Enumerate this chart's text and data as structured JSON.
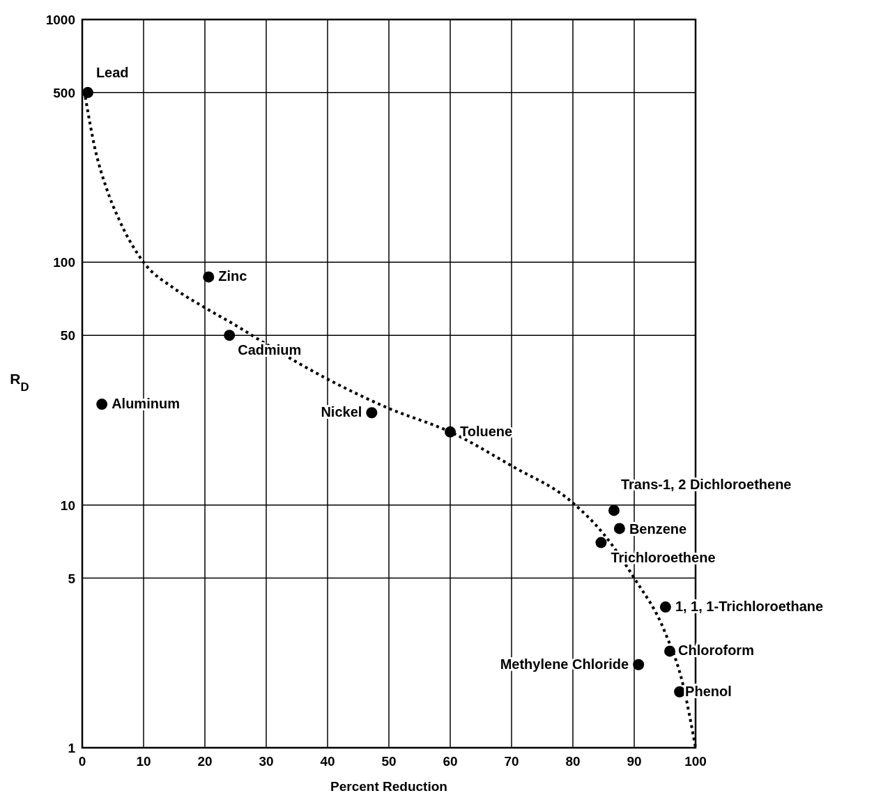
{
  "chart_data": {
    "type": "scatter",
    "xlabel": "Percent Reduction",
    "ylabel": "R$_{D}$",
    "xlim": [
      0,
      100
    ],
    "xticks": [
      0,
      10,
      20,
      30,
      40,
      50,
      60,
      70,
      80,
      90,
      100
    ],
    "ylim": [
      1,
      1000
    ],
    "yticks": [
      1,
      5,
      10,
      50,
      100,
      500,
      1000
    ],
    "log": "y",
    "grid": true,
    "series": [
      {
        "color": "#000000",
        "marker": "circle",
        "x": [
          0.9,
          20.6,
          24,
          3.2,
          47.2,
          60,
          86.7,
          87.6,
          84.6,
          95.1,
          95.8,
          90.7,
          97.4
        ],
        "values": [
          500,
          87,
          50,
          26,
          24,
          20,
          9.5,
          8,
          7,
          3.8,
          2.5,
          2.2,
          1.7
        ]
      },
      {
        "type": "line",
        "color": "#000000",
        "line_style": "dotted",
        "marker": "none",
        "x": [
          0.5,
          2,
          4,
          6,
          10,
          15,
          20,
          25,
          30,
          40,
          50,
          60,
          70,
          80,
          85,
          90,
          95,
          98,
          100
        ],
        "values": [
          480,
          300,
          200,
          150,
          100,
          78,
          65,
          55,
          46,
          33,
          25,
          20,
          14.5,
          10.2,
          7.6,
          5,
          3,
          1.8,
          1
        ]
      }
    ],
    "annotations": [
      {
        "text": "Lead",
        "x": 0.9,
        "y": 500
      },
      {
        "text": "Zinc",
        "x": 20.6,
        "y": 87
      },
      {
        "text": "Cadmium",
        "x": 24,
        "y": 50
      },
      {
        "text": "Aluminum",
        "x": 3.2,
        "y": 26
      },
      {
        "text": "Nickel",
        "x": 47.2,
        "y": 24
      },
      {
        "text": "Toluene",
        "x": 60,
        "y": 20
      },
      {
        "text": "Trans-1, 2 Dichloroethene",
        "x": 86.7,
        "y": 9.5
      },
      {
        "text": "Benzene",
        "x": 87.6,
        "y": 8
      },
      {
        "text": "Trichloroethene",
        "x": 84.6,
        "y": 7
      },
      {
        "text": "1, 1, 1-Trichloroethane",
        "x": 95.1,
        "y": 3.8
      },
      {
        "text": "Chloroform",
        "x": 95.8,
        "y": 2.5
      },
      {
        "text": "Methylene Chloride",
        "x": 90.7,
        "y": 2.2
      },
      {
        "text": "Phenol",
        "x": 97.4,
        "y": 1.7
      }
    ]
  }
}
